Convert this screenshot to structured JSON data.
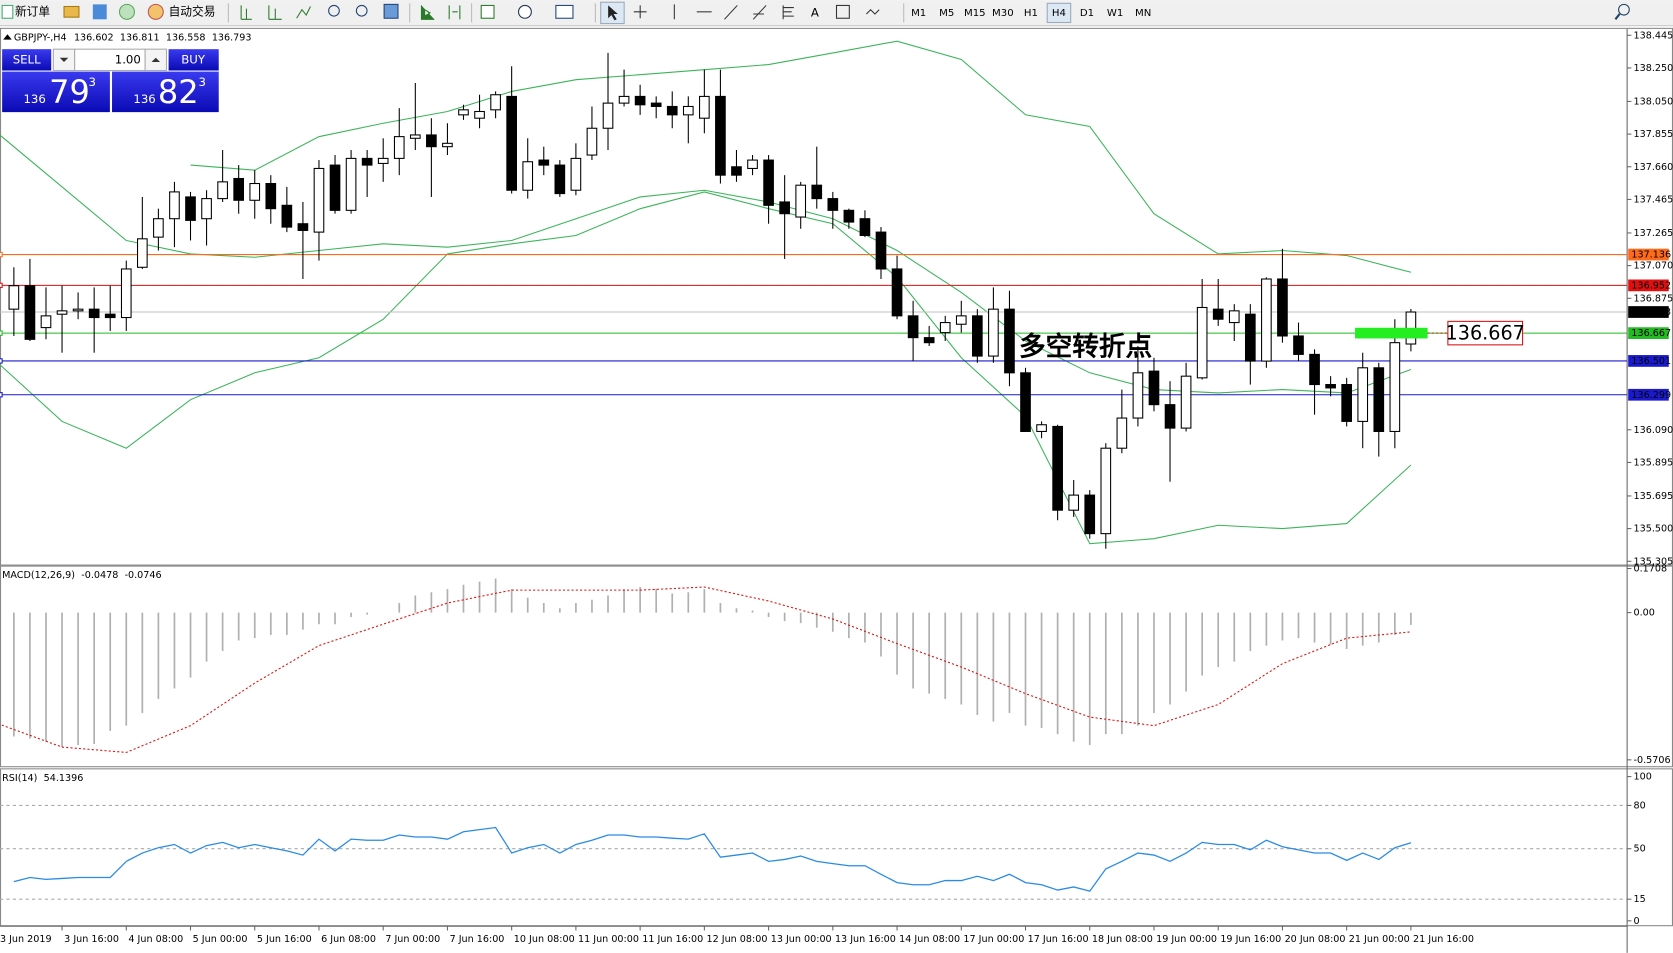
{
  "toolbar": {
    "new_order": "新订单",
    "auto_trading": "自动交易",
    "timeframes": [
      {
        "label": "M1"
      },
      {
        "label": "M5"
      },
      {
        "label": "M15"
      },
      {
        "label": "M30"
      },
      {
        "label": "H1"
      },
      {
        "label": "H4",
        "selected": true
      },
      {
        "label": "D1"
      },
      {
        "label": "W1"
      },
      {
        "label": "MN"
      }
    ]
  },
  "trade_panel": {
    "sell": "SELL",
    "buy": "BUY",
    "lots": "1.00",
    "bid": {
      "big": "136",
      "pips": "79",
      "point": "3"
    },
    "ask": {
      "big": "136",
      "pips": "82",
      "point": "3"
    }
  },
  "time_axis": {
    "labels": [
      "3 Jun 2019",
      "3 Jun 16:00",
      "4 Jun 08:00",
      "5 Jun 00:00",
      "5 Jun 16:00",
      "6 Jun 08:00",
      "7 Jun 00:00",
      "7 Jun 16:00",
      "10 Jun 08:00",
      "11 Jun 00:00",
      "11 Jun 16:00",
      "12 Jun 08:00",
      "13 Jun 00:00",
      "13 Jun 16:00",
      "14 Jun 08:00",
      "17 Jun 00:00",
      "17 Jun 16:00",
      "18 Jun 08:00",
      "19 Jun 00:00",
      "19 Jun 16:00",
      "20 Jun 08:00",
      "21 Jun 00:00",
      "21 Jun 16:00"
    ]
  },
  "chart_data": [
    {
      "type": "candlestick",
      "symbol": "GBPJPY-,H4",
      "ylim": [
        135.292,
        138.483
      ],
      "yticks": [
        138.445,
        {
          "value": 138.25,
          "label": "138.250"
        },
        {
          "value": 138.05,
          "label": "138.050"
        },
        137.855,
        {
          "value": 137.66,
          "label": "137.660"
        },
        137.465,
        137.265,
        {
          "value": 137.07,
          "label": "137.070"
        },
        136.875,
        {
          "value": 136.09,
          "label": "136.090"
        },
        135.895,
        135.695,
        {
          "value": 135.5,
          "label": "135.500"
        },
        135.305
      ],
      "candles": [
        [
          136.81,
          137.06,
          136.65,
          136.95
        ],
        [
          136.95,
          137.11,
          136.62,
          136.63
        ],
        [
          136.7,
          136.94,
          136.63,
          136.77
        ],
        [
          136.78,
          136.95,
          136.55,
          136.8
        ],
        [
          136.8,
          136.91,
          136.75,
          136.81
        ],
        [
          136.81,
          136.94,
          136.55,
          136.76
        ],
        [
          136.78,
          136.95,
          136.68,
          136.76
        ],
        [
          136.76,
          137.1,
          136.68,
          137.05
        ],
        [
          137.06,
          137.48,
          137.05,
          137.23
        ],
        [
          137.24,
          137.41,
          137.16,
          137.35
        ],
        [
          137.35,
          137.57,
          137.18,
          137.51
        ],
        [
          137.48,
          137.51,
          137.22,
          137.34
        ],
        [
          137.35,
          137.52,
          137.19,
          137.47
        ],
        [
          137.47,
          137.76,
          137.45,
          137.57
        ],
        [
          137.59,
          137.67,
          137.38,
          137.46
        ],
        [
          137.46,
          137.64,
          137.35,
          137.56
        ],
        [
          137.56,
          137.61,
          137.32,
          137.41
        ],
        [
          137.43,
          137.54,
          137.27,
          137.3
        ],
        [
          137.32,
          137.45,
          136.99,
          137.28
        ],
        [
          137.27,
          137.7,
          137.1,
          137.65
        ],
        [
          137.67,
          137.73,
          137.38,
          137.4
        ],
        [
          137.4,
          137.76,
          137.38,
          137.71
        ],
        [
          137.71,
          137.76,
          137.48,
          137.67
        ],
        [
          137.68,
          137.83,
          137.57,
          137.71
        ],
        [
          137.71,
          138.01,
          137.61,
          137.84
        ],
        [
          137.83,
          138.16,
          137.76,
          137.85
        ],
        [
          137.85,
          137.95,
          137.48,
          137.78
        ],
        [
          137.78,
          137.92,
          137.73,
          137.8
        ],
        [
          137.97,
          138.03,
          137.94,
          138.0
        ],
        [
          137.95,
          138.09,
          137.89,
          137.99
        ],
        [
          138.0,
          138.11,
          137.95,
          138.09
        ],
        [
          138.08,
          138.26,
          137.5,
          137.52
        ],
        [
          137.52,
          137.83,
          137.47,
          137.69
        ],
        [
          137.7,
          137.78,
          137.61,
          137.67
        ],
        [
          137.67,
          137.7,
          137.48,
          137.5
        ],
        [
          137.52,
          137.8,
          137.49,
          137.71
        ],
        [
          137.73,
          138.02,
          137.7,
          137.89
        ],
        [
          137.89,
          138.34,
          137.76,
          138.04
        ],
        [
          138.04,
          138.24,
          138.02,
          138.08
        ],
        [
          138.08,
          138.15,
          137.97,
          138.03
        ],
        [
          138.04,
          138.08,
          137.95,
          138.02
        ],
        [
          138.02,
          138.11,
          137.89,
          137.97
        ],
        [
          137.97,
          138.08,
          137.8,
          138.02
        ],
        [
          137.95,
          138.24,
          137.86,
          138.08
        ],
        [
          138.08,
          138.24,
          137.56,
          137.61
        ],
        [
          137.66,
          137.76,
          137.57,
          137.61
        ],
        [
          137.65,
          137.73,
          137.61,
          137.7
        ],
        [
          137.7,
          137.73,
          137.32,
          137.43
        ],
        [
          137.45,
          137.61,
          137.11,
          137.38
        ],
        [
          137.36,
          137.57,
          137.29,
          137.55
        ],
        [
          137.55,
          137.78,
          137.41,
          137.47
        ],
        [
          137.47,
          137.51,
          137.29,
          137.4
        ],
        [
          137.4,
          137.41,
          137.29,
          137.33
        ],
        [
          137.35,
          137.4,
          137.24,
          137.25
        ],
        [
          137.27,
          137.3,
          136.99,
          137.05
        ],
        [
          137.05,
          137.13,
          136.75,
          136.77
        ],
        [
          136.77,
          136.86,
          136.5,
          136.64
        ],
        [
          136.64,
          136.71,
          136.59,
          136.61
        ],
        [
          136.67,
          136.77,
          136.62,
          136.73
        ],
        [
          136.72,
          136.86,
          136.67,
          136.77
        ],
        [
          136.77,
          136.81,
          136.49,
          136.53
        ],
        [
          136.53,
          136.94,
          136.49,
          136.81
        ],
        [
          136.81,
          136.92,
          136.35,
          136.43
        ],
        [
          136.43,
          136.46,
          136.08,
          136.08
        ],
        [
          136.08,
          136.14,
          136.04,
          136.12
        ],
        [
          136.11,
          136.12,
          135.55,
          135.61
        ],
        [
          135.61,
          135.79,
          135.57,
          135.7
        ],
        [
          135.7,
          135.73,
          135.44,
          135.47
        ],
        [
          135.47,
          136.01,
          135.38,
          135.98
        ],
        [
          135.98,
          136.33,
          135.95,
          136.16
        ],
        [
          136.16,
          136.59,
          136.11,
          136.43
        ],
        [
          136.44,
          136.52,
          136.2,
          136.24
        ],
        [
          136.24,
          136.38,
          135.78,
          136.1
        ],
        [
          136.1,
          136.49,
          136.08,
          136.41
        ],
        [
          136.4,
          136.99,
          136.39,
          136.82
        ],
        [
          136.81,
          136.99,
          136.71,
          136.75
        ],
        [
          136.73,
          136.84,
          136.62,
          136.8
        ],
        [
          136.78,
          136.84,
          136.36,
          136.5
        ],
        [
          136.5,
          137.0,
          136.46,
          136.99
        ],
        [
          136.99,
          137.17,
          136.61,
          136.65
        ],
        [
          136.65,
          136.73,
          136.5,
          136.54
        ],
        [
          136.54,
          136.57,
          136.18,
          136.36
        ],
        [
          136.36,
          136.41,
          136.29,
          136.34
        ],
        [
          136.36,
          136.4,
          136.11,
          136.14
        ],
        [
          136.14,
          136.55,
          135.98,
          136.46
        ],
        [
          136.46,
          136.49,
          135.93,
          136.08
        ],
        [
          136.08,
          136.75,
          135.98,
          136.61
        ],
        [
          136.602,
          136.811,
          136.558,
          136.793
        ]
      ],
      "bands_x": [
        -1,
        3,
        7,
        11,
        15,
        19,
        23,
        27,
        31,
        35,
        39,
        43,
        47,
        51,
        55,
        59,
        63,
        67,
        71,
        75,
        79,
        83,
        87
      ],
      "bands": [
        {
          "color": "#3cb45a",
          "values": [
            null,
            null,
            null,
            137.67,
            137.64,
            137.84,
            137.92,
            137.99,
            138.11,
            138.18,
            138.21,
            138.24,
            138.27,
            138.34,
            138.41,
            138.3,
            137.97,
            137.9,
            137.38,
            137.14,
            137.16,
            137.13,
            137.03
          ]
        },
        {
          "color": "#3cb45a",
          "values": [
            137.86,
            137.54,
            137.22,
            137.14,
            137.12,
            137.16,
            137.2,
            137.18,
            137.22,
            137.35,
            137.48,
            137.52,
            137.45,
            137.35,
            137.16,
            136.91,
            136.62,
            136.43,
            136.33,
            136.31,
            136.33,
            136.31,
            136.45
          ]
        },
        {
          "color": "#3cb45a",
          "values": [
            136.49,
            136.14,
            135.98,
            136.27,
            136.43,
            136.52,
            136.75,
            137.14,
            137.2,
            137.25,
            137.41,
            137.51,
            137.41,
            137.32,
            137.0,
            136.52,
            136.17,
            135.41,
            135.44,
            135.52,
            135.5,
            135.53,
            135.88
          ]
        }
      ],
      "hlines": [
        {
          "value": 137.136,
          "color": "#ff6a1a"
        },
        {
          "value": 136.952,
          "color": "#e01010"
        },
        {
          "value": 136.667,
          "color": "#22bb22"
        },
        {
          "value": 136.501,
          "color": "#1a1acc"
        },
        {
          "value": 136.299,
          "color": "#1a1acc"
        }
      ],
      "annotation": {
        "text": "多空转折点",
        "color": "#11bb11"
      }
    },
    {
      "type": "macd",
      "name": "MACD(12,26,9)",
      "ylim": [
        -0.591,
        0.178
      ],
      "yticks": [
        0.1708,
        {
          "value": 0,
          "label": "0.00"
        },
        -0.5706
      ],
      "histogram": [
        -0.48,
        -0.488,
        -0.5,
        -0.521,
        -0.513,
        -0.509,
        -0.459,
        -0.438,
        -0.389,
        -0.335,
        -0.294,
        -0.252,
        -0.19,
        -0.149,
        -0.108,
        -0.099,
        -0.087,
        -0.087,
        -0.066,
        -0.045,
        -0.045,
        -0.017,
        -0.008,
        0.0,
        0.037,
        0.066,
        0.079,
        0.091,
        0.108,
        0.12,
        0.132,
        0.091,
        0.058,
        0.037,
        0.017,
        0.037,
        0.05,
        0.066,
        0.091,
        0.099,
        0.091,
        0.074,
        0.079,
        0.091,
        0.037,
        0.017,
        0.008,
        -0.017,
        -0.033,
        -0.041,
        -0.058,
        -0.074,
        -0.099,
        -0.116,
        -0.17,
        -0.24,
        -0.294,
        -0.314,
        -0.335,
        -0.356,
        -0.397,
        -0.422,
        -0.389,
        -0.438,
        -0.447,
        -0.471,
        -0.5,
        -0.513,
        -0.471,
        -0.471,
        -0.438,
        -0.389,
        -0.356,
        -0.306,
        -0.244,
        -0.211,
        -0.19,
        -0.149,
        -0.128,
        -0.108,
        -0.099,
        -0.116,
        -0.124,
        -0.141,
        -0.128,
        -0.116,
        -0.087,
        -0.0478
      ],
      "histogram_color": "#b0b0b0",
      "signal_x": [
        -1,
        3,
        7,
        11,
        15,
        19,
        23,
        27,
        31,
        35,
        39,
        43,
        47,
        51,
        55,
        59,
        63,
        67,
        71,
        75,
        79,
        83,
        87
      ],
      "signal": [
        -0.43,
        -0.521,
        -0.542,
        -0.438,
        -0.273,
        -0.128,
        -0.045,
        0.037,
        0.087,
        0.087,
        0.087,
        0.099,
        0.045,
        -0.025,
        -0.12,
        -0.211,
        -0.314,
        -0.405,
        -0.438,
        -0.356,
        -0.198,
        -0.099,
        -0.0746
      ],
      "signal_color": "#e01010"
    },
    {
      "type": "line",
      "name": "RSI(14)",
      "ylim": [
        -3,
        105
      ],
      "yticks": [
        100,
        80,
        50,
        15,
        0
      ],
      "levels": [
        80,
        50,
        15
      ],
      "color": "#2a8be6",
      "values": [
        27.2,
        30.1,
        28.7,
        29.4,
        30.1,
        30.1,
        30.1,
        41.2,
        47.0,
        50.7,
        52.9,
        47.0,
        52.2,
        54.4,
        50.7,
        52.9,
        50.7,
        48.5,
        45.6,
        56.6,
        48.5,
        56.6,
        55.9,
        55.9,
        59.5,
        58.1,
        58.1,
        56.6,
        61.7,
        63.2,
        64.7,
        47.0,
        50.7,
        52.9,
        47.0,
        52.9,
        55.9,
        59.5,
        59.5,
        58.1,
        58.1,
        57.3,
        56.6,
        60.3,
        44.1,
        45.6,
        47.0,
        41.2,
        42.6,
        44.9,
        41.2,
        39.7,
        38.2,
        38.2,
        32.3,
        26.5,
        25.0,
        25.0,
        27.9,
        27.9,
        30.9,
        27.9,
        32.3,
        26.5,
        25.0,
        21.3,
        23.5,
        20.6,
        36.0,
        41.2,
        47.0,
        45.6,
        41.2,
        47.0,
        54.4,
        52.9,
        52.9,
        49.2,
        55.9,
        51.4,
        49.2,
        47.0,
        47.0,
        41.9,
        47.0,
        42.6,
        50.7,
        54.1396
      ]
    }
  ]
}
